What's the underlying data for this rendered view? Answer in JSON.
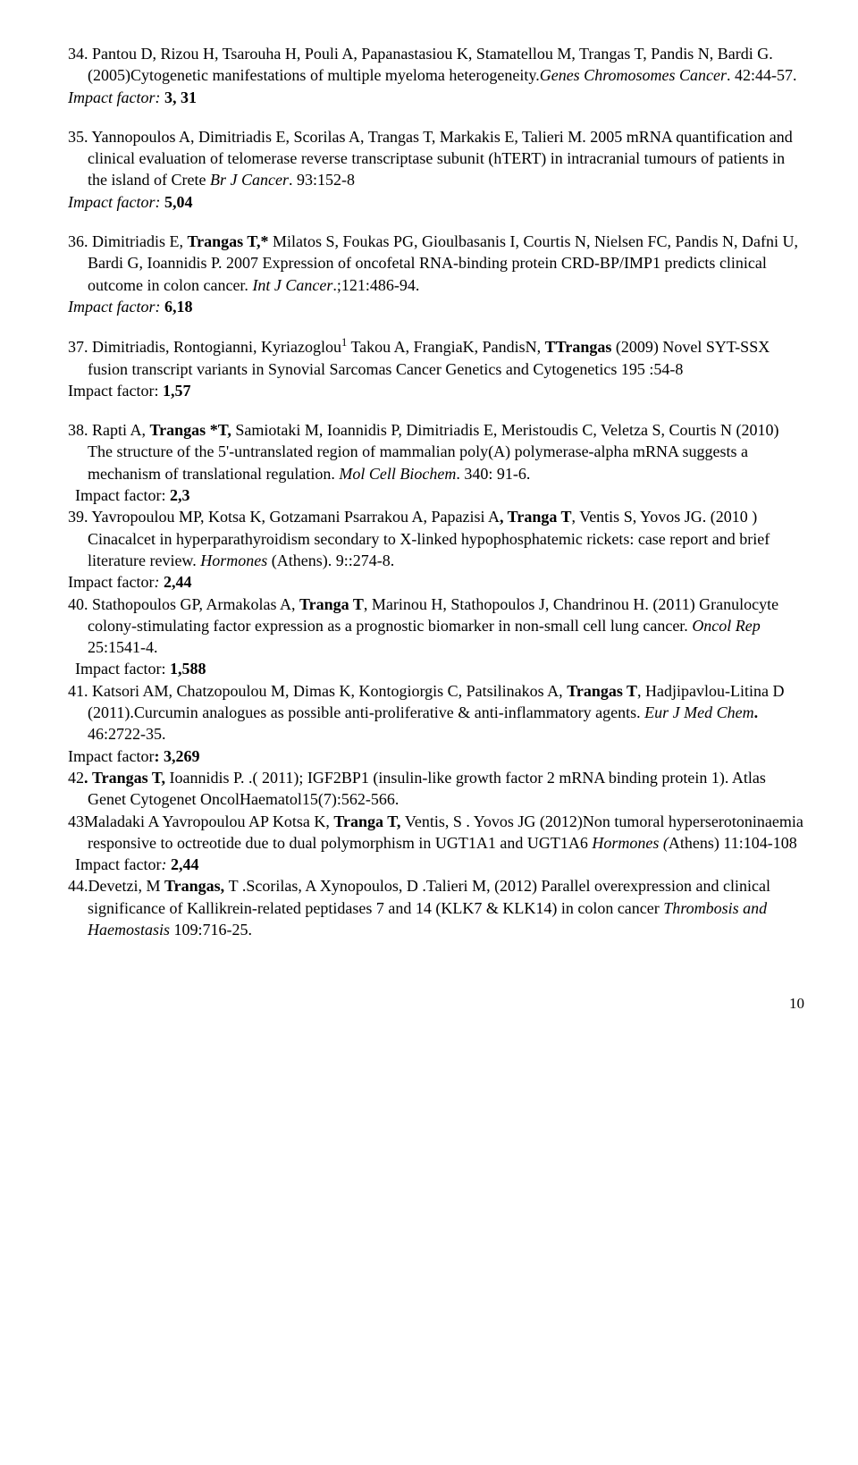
{
  "refs": [
    {
      "num": "34.",
      "body": "Pantou D, Rizou H, Tsarouha H, Pouli A, Papanastasiou K, Stamatellou M, Trangas T, Pandis N, Bardi G. (2005)Cytogenetic manifestations of multiple myeloma heterogeneity.<i>Genes Chromosomes Cancer</i>. 42:44-57.",
      "impact": "<i>Impact factor:</i>  <b>3, 31</b>",
      "hang": true,
      "gap": true
    },
    {
      "num": "35.",
      "body": "Yannopoulos A, Dimitriadis E, Scorilas A, Trangas T, Markakis E, Talieri M. 2005 mRNA quantification and clinical evaluation of telomerase reverse transcriptase subunit (hTERT) in intracranial tumours of patients in the island of Crete <i>Br J Cancer</i>.  93:152-8",
      "impact": "<i>Impact factor:</i>  <b>5,04</b>",
      "hang": true,
      "gap": true
    },
    {
      "num": "36.",
      "body": "Dimitriadis E, <b>Trangas T,*</b> Milatos S, Foukas PG, Gioulbasanis I, Courtis N, Nielsen FC, Pandis N, Dafni U, Bardi G, Ioannidis P. 2007 Expression of oncofetal RNA-binding protein CRD-BP/IMP1 predicts clinical outcome in colon cancer. <i>Int J Cancer</i>.;121:486-94.",
      "impact": "<i>Impact factor:</i>   <b>6,18</b>",
      "hang": true,
      "gap": true
    },
    {
      "num": "37.",
      "body": "Dimitriadis,  Rontogianni,  Kyriazoglou<sup>1</sup> Takou A,  FrangiaK,  PandisN, <b>TTrangas</b>   (2009) Novel SYT-SSX fusion transcript variants in Synovial Sarcomas Cancer Genetics and Cytogenetics 195 :54-8",
      "impact": "Impact factor: <b>1,57</b>",
      "hang": true,
      "gap": true
    },
    {
      "num": "38.",
      "body": "Rapti A, <b>Trangas *T,</b> Samiotaki M, Ioannidis P, Dimitriadis E, Meristoudis C, Veletza S, Courtis N (2010) The structure of the 5'-untranslated region of mammalian poly(A) polymerase-alpha mRNA suggests a mechanism of translational regulation. <i>Mol Cell Biochem</i>. 340: 91-6.",
      "impact": "Impact factor: <b>2,3</b>",
      "impactIndent": true,
      "hang": true,
      "gap": false
    },
    {
      "num": "39.",
      "body": "Yavropoulou MP, Kotsa K, Gotzamani Psarrakou A, Papazisi A<b>, Tranga T</b>, Ventis S, Yovos JG. (2010 ) Cinacalcet in hyperparathyroidism secondary to X-linked hypophosphatemic rickets: case report and brief literature review. <i>Hormones</i> (Athens).  9::274-8.",
      "impact": "Impact factor<i>:</i> <b>2,44</b>",
      "hang": true,
      "gap": false
    },
    {
      "num": "40.",
      "body": "Stathopoulos GP, Armakolas A, <b>Tranga T</b>, Marinou H, Stathopoulos J, Chandrinou H. (2011)     Granulocyte colony-stimulating factor expression as a prognostic biomarker in non-small cell lung cancer. <i>Oncol Rep</i> 25:1541-4.",
      "impact": "Impact factor: <b>1,588</b>",
      "impactIndent": true,
      "hang": true,
      "gap": false
    },
    {
      "num": "41.",
      "body": "Katsori AM, Chatzopoulou M, Dimas K, Kontogiorgis C, Patsilinakos A, <b>Trangas T</b>, Hadjipavlou-Litina D (2011).Curcumin analogues as possible anti-proliferative &amp; anti-inflammatory agents. <i>Eur J Med Chem</i><b>.</b>  46:2722-35.",
      "impact": "Impact factor<b>: 3,269</b>",
      "hang": true,
      "gap": false
    },
    {
      "num": "42<b>.</b>",
      "body": "<b>Trangas T,</b> Ioannidis P. .( 2011);  IGF2BP1 (insulin-like growth factor 2 mRNA binding protein 1). Atlas Genet Cytogenet OncolHaematol15(7):562-566.",
      "hang": true,
      "gap": false
    },
    {
      "num": "43",
      "body": "Maladaki A Yavropoulou AP  Kotsa K, <b>Tranga T, </b>Ventis,  S . Yovos JG (2012)Non tumoral hyperserotoninaemia responsive to octreotide due to dual polymorphism in UGT1A1 and UGT1A6  <i>Hormones (</i>Athens)  11:104-108",
      "impact": "Impact factor<i>:</i> <b>2,44</b>",
      "impactIndent": true,
      "hang": true,
      "gap": false,
      "nospace": true
    },
    {
      "num": "44.",
      "body": "Devetzi, M  <b>Trangas, </b>T .Scorilas, A Xynopoulos, D .Talieri M, (2012)  Parallel overexpression and clinical significance of Kallikrein-related peptidases 7 and 14 (KLK7 &amp; KLK14) in colon cancer  <i>Thrombosis and Haemostasis </i> 109:716-25.",
      "hang": true,
      "gap": false,
      "nospace": true
    }
  ],
  "pageNumber": "10"
}
